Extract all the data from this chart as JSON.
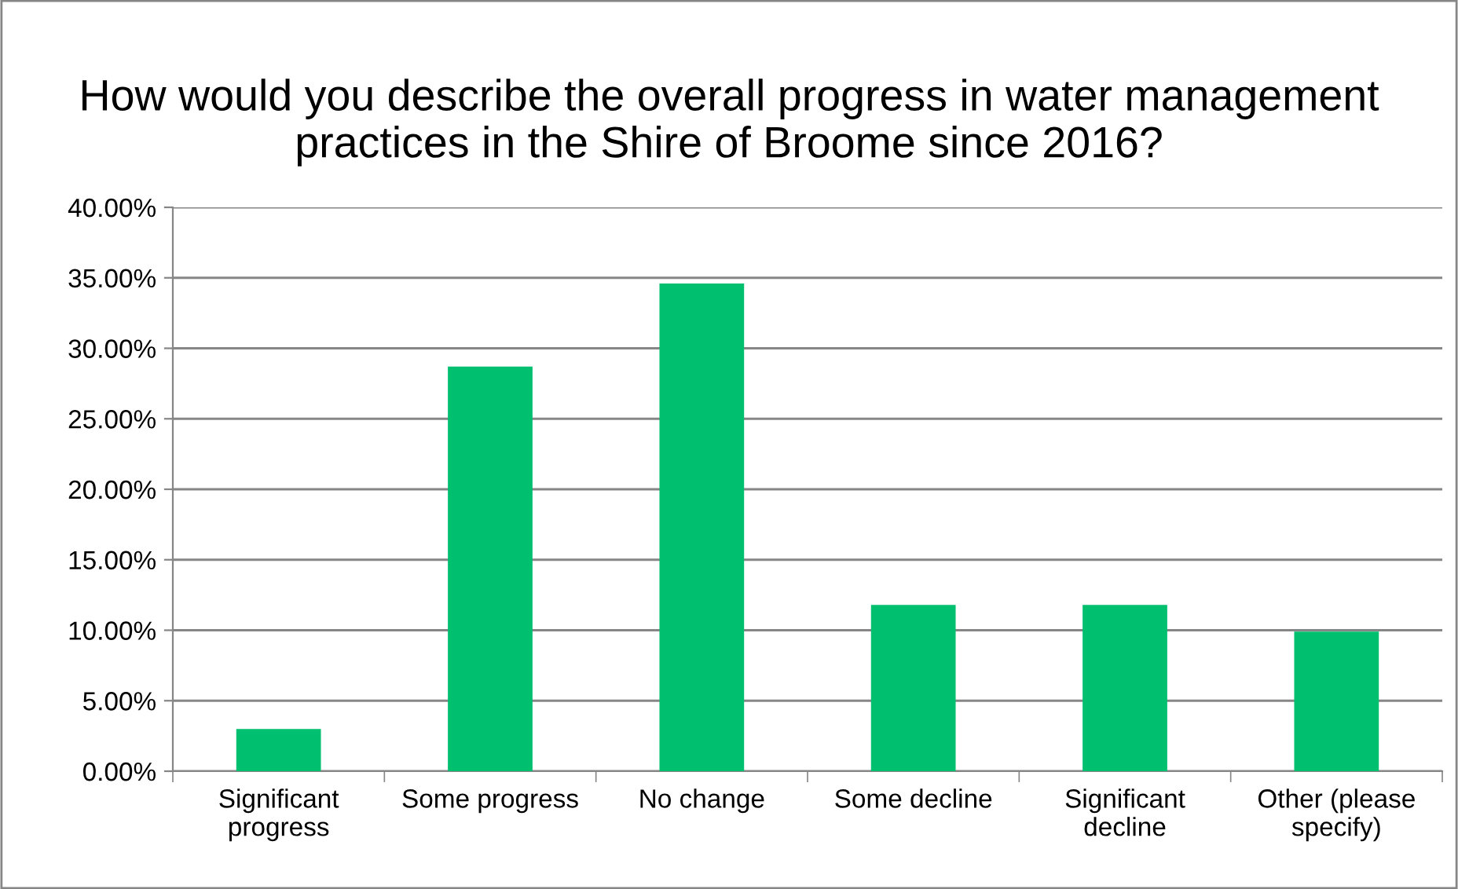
{
  "chart_data": {
    "type": "bar",
    "title": "How would you describe the overall progress in water management practices in the Shire of Broome since 2016?",
    "categories": [
      "Significant\nprogress",
      "Some progress",
      "No change",
      "Some decline",
      "Significant\ndecline",
      "Other (please\nspecify)"
    ],
    "values": [
      3.0,
      28.7,
      34.6,
      11.8,
      11.8,
      9.9
    ],
    "color": "#00bf6f",
    "ylim": [
      0,
      40
    ],
    "yticks": [
      {
        "value": 0,
        "label": "0.00%"
      },
      {
        "value": 5,
        "label": "5.00%"
      },
      {
        "value": 10,
        "label": "10.00%"
      },
      {
        "value": 15,
        "label": "15.00%"
      },
      {
        "value": 20,
        "label": "20.00%"
      },
      {
        "value": 25,
        "label": "25.00%"
      },
      {
        "value": 30,
        "label": "30.00%"
      },
      {
        "value": 35,
        "label": "35.00%"
      },
      {
        "value": 40,
        "label": "40.00%"
      }
    ],
    "grid": "y"
  }
}
